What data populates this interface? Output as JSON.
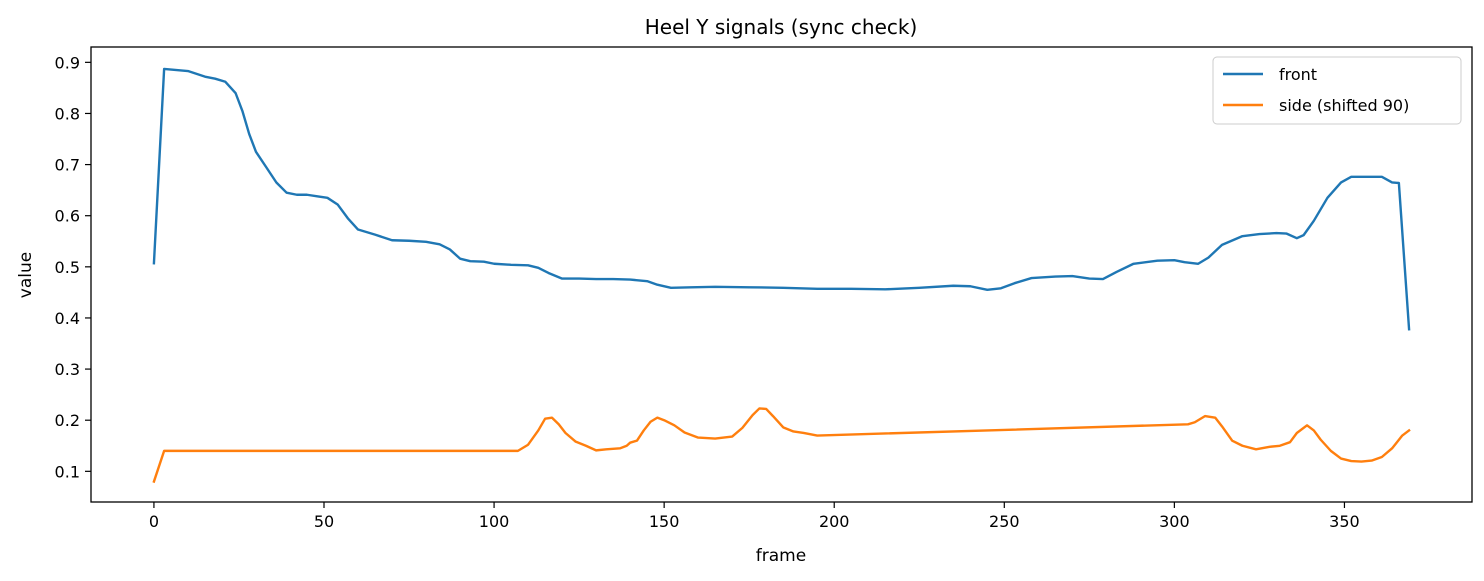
{
  "chart_data": {
    "type": "line",
    "title": "Heel Y signals (sync check)",
    "xlabel": "frame",
    "ylabel": "value",
    "xlim": [
      -18.5,
      387.5
    ],
    "ylim": [
      0.04,
      0.93
    ],
    "xticks": [
      0,
      50,
      100,
      150,
      200,
      250,
      300,
      350
    ],
    "yticks": [
      0.1,
      0.2,
      0.3,
      0.4,
      0.5,
      0.6,
      0.7,
      0.8,
      0.9
    ],
    "legend_position": "top-right",
    "series": [
      {
        "name": "front",
        "color": "#1f77b4",
        "points": [
          [
            0,
            0.507
          ],
          [
            3,
            0.887
          ],
          [
            10,
            0.883
          ],
          [
            15,
            0.872
          ],
          [
            18,
            0.868
          ],
          [
            21,
            0.862
          ],
          [
            24,
            0.84
          ],
          [
            26,
            0.805
          ],
          [
            28,
            0.76
          ],
          [
            30,
            0.725
          ],
          [
            33,
            0.695
          ],
          [
            36,
            0.665
          ],
          [
            39,
            0.645
          ],
          [
            42,
            0.641
          ],
          [
            45,
            0.641
          ],
          [
            48,
            0.638
          ],
          [
            51,
            0.635
          ],
          [
            54,
            0.622
          ],
          [
            57,
            0.595
          ],
          [
            60,
            0.573
          ],
          [
            65,
            0.563
          ],
          [
            70,
            0.552
          ],
          [
            75,
            0.551
          ],
          [
            80,
            0.549
          ],
          [
            84,
            0.544
          ],
          [
            87,
            0.534
          ],
          [
            90,
            0.516
          ],
          [
            93,
            0.511
          ],
          [
            97,
            0.51
          ],
          [
            100,
            0.506
          ],
          [
            105,
            0.504
          ],
          [
            110,
            0.503
          ],
          [
            113,
            0.498
          ],
          [
            116,
            0.488
          ],
          [
            120,
            0.477
          ],
          [
            125,
            0.477
          ],
          [
            130,
            0.476
          ],
          [
            135,
            0.476
          ],
          [
            140,
            0.475
          ],
          [
            145,
            0.472
          ],
          [
            148,
            0.465
          ],
          [
            152,
            0.459
          ],
          [
            158,
            0.46
          ],
          [
            165,
            0.461
          ],
          [
            175,
            0.46
          ],
          [
            185,
            0.459
          ],
          [
            195,
            0.457
          ],
          [
            205,
            0.457
          ],
          [
            215,
            0.456
          ],
          [
            225,
            0.459
          ],
          [
            235,
            0.463
          ],
          [
            240,
            0.462
          ],
          [
            245,
            0.455
          ],
          [
            249,
            0.458
          ],
          [
            253,
            0.468
          ],
          [
            258,
            0.478
          ],
          [
            265,
            0.481
          ],
          [
            270,
            0.482
          ],
          [
            275,
            0.477
          ],
          [
            279,
            0.476
          ],
          [
            283,
            0.49
          ],
          [
            288,
            0.506
          ],
          [
            295,
            0.512
          ],
          [
            300,
            0.513
          ],
          [
            303,
            0.509
          ],
          [
            307,
            0.506
          ],
          [
            310,
            0.518
          ],
          [
            314,
            0.543
          ],
          [
            320,
            0.56
          ],
          [
            325,
            0.564
          ],
          [
            330,
            0.566
          ],
          [
            333,
            0.565
          ],
          [
            336,
            0.556
          ],
          [
            338,
            0.562
          ],
          [
            341,
            0.59
          ],
          [
            345,
            0.635
          ],
          [
            349,
            0.665
          ],
          [
            352,
            0.676
          ],
          [
            357,
            0.676
          ],
          [
            361,
            0.676
          ],
          [
            364,
            0.665
          ],
          [
            366,
            0.664
          ],
          [
            369,
            0.378
          ]
        ]
      },
      {
        "name": "side (shifted 90)",
        "color": "#ff7f0e",
        "points": [
          [
            0,
            0.08
          ],
          [
            3,
            0.14
          ],
          [
            10,
            0.14
          ],
          [
            50,
            0.14
          ],
          [
            100,
            0.14
          ],
          [
            107,
            0.14
          ],
          [
            110,
            0.152
          ],
          [
            113,
            0.18
          ],
          [
            115,
            0.203
          ],
          [
            117,
            0.205
          ],
          [
            119,
            0.192
          ],
          [
            121,
            0.175
          ],
          [
            124,
            0.158
          ],
          [
            127,
            0.15
          ],
          [
            130,
            0.141
          ],
          [
            133,
            0.143
          ],
          [
            137,
            0.145
          ],
          [
            139,
            0.15
          ],
          [
            140,
            0.156
          ],
          [
            142,
            0.16
          ],
          [
            144,
            0.18
          ],
          [
            146,
            0.197
          ],
          [
            148,
            0.205
          ],
          [
            150,
            0.2
          ],
          [
            153,
            0.19
          ],
          [
            156,
            0.176
          ],
          [
            160,
            0.166
          ],
          [
            165,
            0.164
          ],
          [
            170,
            0.168
          ],
          [
            173,
            0.185
          ],
          [
            176,
            0.21
          ],
          [
            178,
            0.223
          ],
          [
            180,
            0.222
          ],
          [
            182,
            0.208
          ],
          [
            185,
            0.186
          ],
          [
            188,
            0.178
          ],
          [
            191,
            0.175
          ],
          [
            195,
            0.17
          ],
          [
            250,
            0.181
          ],
          [
            304,
            0.192
          ],
          [
            306,
            0.196
          ],
          [
            309,
            0.208
          ],
          [
            312,
            0.205
          ],
          [
            314,
            0.188
          ],
          [
            317,
            0.16
          ],
          [
            320,
            0.15
          ],
          [
            324,
            0.143
          ],
          [
            328,
            0.148
          ],
          [
            331,
            0.15
          ],
          [
            334,
            0.157
          ],
          [
            336,
            0.175
          ],
          [
            339,
            0.19
          ],
          [
            341,
            0.18
          ],
          [
            343,
            0.162
          ],
          [
            346,
            0.14
          ],
          [
            349,
            0.125
          ],
          [
            352,
            0.12
          ],
          [
            355,
            0.119
          ],
          [
            358,
            0.121
          ],
          [
            361,
            0.128
          ],
          [
            364,
            0.145
          ],
          [
            367,
            0.17
          ],
          [
            369,
            0.18
          ]
        ]
      }
    ]
  }
}
